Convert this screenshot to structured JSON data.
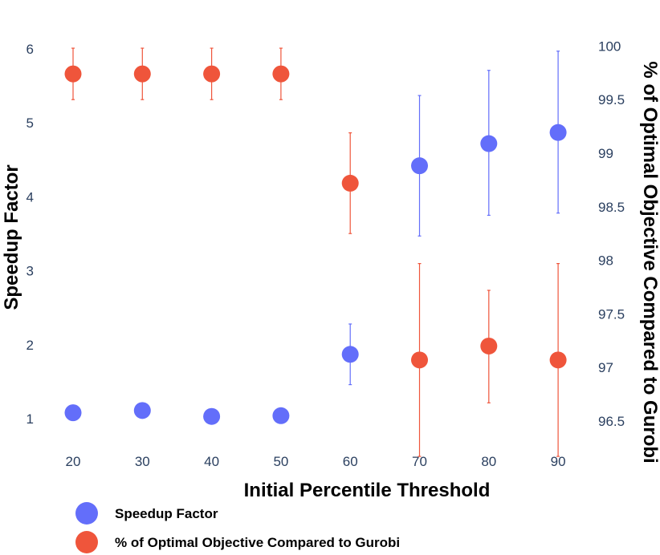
{
  "chart_data": {
    "type": "scatter",
    "x": [
      20,
      30,
      40,
      50,
      60,
      70,
      80,
      90
    ],
    "x_tick_labels": [
      "20",
      "30",
      "40",
      "50",
      "60",
      "70",
      "80",
      "90"
    ],
    "xlabel": "Initial Percentile Threshold",
    "ylabel_left": "Speedup Factor",
    "ylabel_right": "% of Optimal Objective Compared to Gurobi",
    "y_left_ticks": [
      "1",
      "2",
      "3",
      "4",
      "5",
      "6"
    ],
    "y_right_ticks": [
      "96.5",
      "97",
      "97.5",
      "98",
      "98.5",
      "99",
      "99.5",
      "100"
    ],
    "ylim_left": [
      0.6,
      6.3
    ],
    "ylim_right": [
      96.37,
      100.14
    ],
    "series": [
      {
        "name": "Speedup Factor",
        "axis": "left",
        "color": "#636efa",
        "values": [
          1.08,
          1.11,
          1.03,
          1.04,
          1.87,
          4.42,
          4.72,
          4.87
        ],
        "err_low": [
          0,
          0,
          0.04,
          0,
          0.41,
          0.95,
          0.97,
          1.09
        ],
        "err_high": [
          0,
          0,
          0.04,
          0,
          0.41,
          0.95,
          0.99,
          1.1
        ]
      },
      {
        "name": "% of Optimal Objective Compared to Gurobi",
        "axis": "right",
        "color": "#ef553b",
        "values": [
          99.74,
          99.74,
          99.74,
          99.74,
          98.72,
          97.07,
          97.2,
          97.07
        ],
        "err_low": [
          0.24,
          0.24,
          0.24,
          0.24,
          0.47,
          0.9,
          0.53,
          0.9
        ],
        "err_high": [
          0.24,
          0.24,
          0.24,
          0.24,
          0.47,
          0.9,
          0.52,
          0.9
        ]
      }
    ],
    "legend": [
      {
        "label": "Speedup Factor",
        "color": "#636efa"
      },
      {
        "label": "% of Optimal Objective Compared to Gurobi",
        "color": "#ef553b"
      }
    ],
    "grid": false,
    "legend_position": "bottom-left"
  }
}
